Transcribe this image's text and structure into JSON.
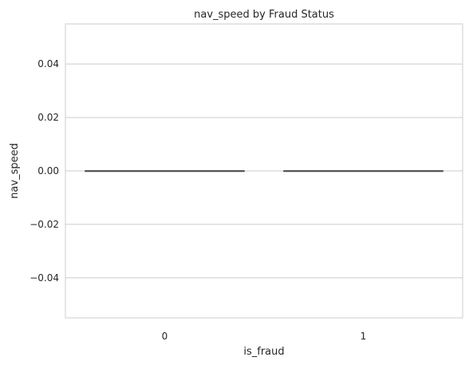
{
  "chart_data": {
    "type": "box",
    "title": "nav_speed by Fraud Status",
    "xlabel": "is_fraud",
    "ylabel": "nav_speed",
    "categories": [
      "0",
      "1"
    ],
    "ylim": [
      -0.055,
      0.055
    ],
    "yticks": [
      -0.04,
      -0.02,
      0.0,
      0.02,
      0.04
    ],
    "ytick_labels": [
      "−0.04",
      "−0.02",
      "0.00",
      "0.02",
      "0.04"
    ],
    "boxes": [
      {
        "category": "0",
        "min": 0,
        "q1": 0,
        "median": 0,
        "q3": 0,
        "max": 0
      },
      {
        "category": "1",
        "min": 0,
        "q1": 0,
        "median": 0,
        "q3": 0,
        "max": 0
      }
    ],
    "grid": "horizontal",
    "colors": {
      "grid": "#cccccc",
      "spine": "#cccccc",
      "box_line": "#4d4d4d",
      "text": "#262626"
    }
  }
}
